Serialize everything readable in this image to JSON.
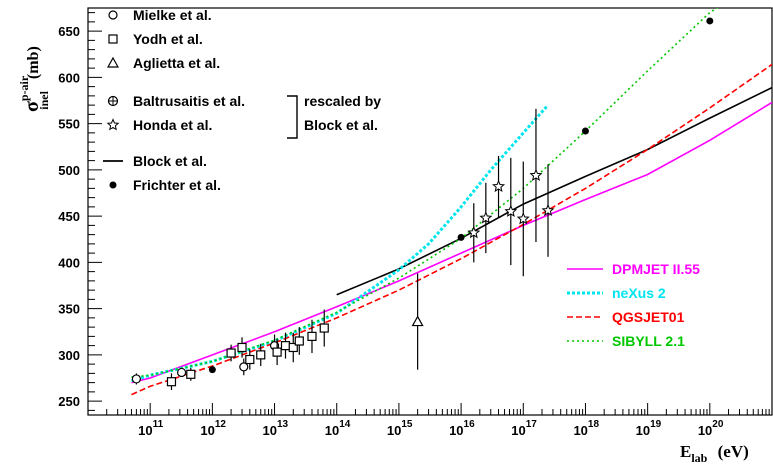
{
  "chart_data": {
    "type": "scatter",
    "xlabel": {
      "main": "E",
      "sub": "lab",
      "unit": "(eV)"
    },
    "ylabel": {
      "main": "σ",
      "sup": "p-air",
      "sub": "inel",
      "unit": "(mb)"
    },
    "xscale": "log",
    "xlim": [
      10000000000.0,
      1e+21
    ],
    "ylim": [
      235,
      675
    ],
    "x_tick_exponents": [
      "11",
      "12",
      "13",
      "14",
      "15",
      "16",
      "17",
      "18",
      "19",
      "20"
    ],
    "y_ticks": [
      250,
      300,
      350,
      400,
      450,
      500,
      550,
      600,
      650
    ],
    "legend_data": [
      {
        "name": "Mielke et al.",
        "marker": "circle"
      },
      {
        "name": "Yodh et al.",
        "marker": "square"
      },
      {
        "name": "Aglietta et al.",
        "marker": "triangle"
      },
      {
        "name": "Baltrusaitis et al.",
        "marker": "crossed-circle"
      },
      {
        "name": "Honda et al.",
        "marker": "star"
      },
      {
        "name": "Block et al.",
        "marker": "line"
      },
      {
        "name": "Frichter et al.",
        "marker": "dot"
      }
    ],
    "bracket_note": [
      "rescaled by",
      "Block et al."
    ],
    "legend_models": [
      {
        "name": "DPMJET II.55",
        "color": "#ff00ff"
      },
      {
        "name": "neXus 2",
        "color": "#00e5ee"
      },
      {
        "name": "QGSJET01",
        "color": "#ff0000"
      },
      {
        "name": "SIBYLL 2.1",
        "color": "#00c800"
      }
    ],
    "series": [
      {
        "name": "Mielke et al.",
        "marker": "circle",
        "points": [
          {
            "x": 60000000000.0,
            "y": 274,
            "err": 6
          },
          {
            "x": 320000000000.0,
            "y": 281,
            "err": 5
          },
          {
            "x": 3200000000000.0,
            "y": 287,
            "err": 9
          },
          {
            "x": 10000000000000.0,
            "y": 310,
            "err": 12
          }
        ]
      },
      {
        "name": "Yodh et al.",
        "marker": "square",
        "points": [
          {
            "x": 220000000000.0,
            "y": 271,
            "err": 9
          },
          {
            "x": 450000000000.0,
            "y": 279,
            "err": 7
          },
          {
            "x": 2000000000000.0,
            "y": 302,
            "err": 9
          },
          {
            "x": 3000000000000.0,
            "y": 308,
            "err": 11
          },
          {
            "x": 4000000000000.0,
            "y": 295,
            "err": 11
          },
          {
            "x": 6000000000000.0,
            "y": 300,
            "err": 12
          },
          {
            "x": 11000000000000.0,
            "y": 303,
            "err": 14
          },
          {
            "x": 15000000000000.0,
            "y": 310,
            "err": 14
          },
          {
            "x": 20000000000000.0,
            "y": 308,
            "err": 16
          },
          {
            "x": 25000000000000.0,
            "y": 315,
            "err": 15
          },
          {
            "x": 40000000000000.0,
            "y": 320,
            "err": 18
          },
          {
            "x": 63000000000000.0,
            "y": 329,
            "err": 20
          }
        ]
      },
      {
        "name": "Aglietta et al.",
        "marker": "triangle",
        "points": [
          {
            "x": 2000000000000000.0,
            "y": 336,
            "err": 52
          }
        ]
      },
      {
        "name": "Honda et al.",
        "marker": "star",
        "points": [
          {
            "x": 1.6e+16,
            "y": 432,
            "err": 32
          },
          {
            "x": 2.5e+16,
            "y": 448,
            "err": 38
          },
          {
            "x": 4e+16,
            "y": 482,
            "err": 33
          },
          {
            "x": 6.3e+16,
            "y": 455,
            "err": 58
          },
          {
            "x": 1e+17,
            "y": 447,
            "err": 62
          },
          {
            "x": 1.6e+17,
            "y": 494,
            "err": 72
          },
          {
            "x": 2.5e+17,
            "y": 456,
            "err": 50
          }
        ]
      },
      {
        "name": "Frichter et al.",
        "marker": "dot",
        "points": [
          {
            "x": 1000000000000.0,
            "y": 284
          },
          {
            "x": 1e+16,
            "y": 427
          },
          {
            "x": 1e+18,
            "y": 542
          },
          {
            "x": 1e+20,
            "y": 661
          }
        ]
      }
    ],
    "curves": [
      {
        "name": "Block et al.",
        "color": "#000000",
        "style": "solid",
        "x": [
          100000000000000.0,
          1000000000000000.0,
          1e+16,
          1e+17,
          1e+18,
          1e+19,
          1e+20,
          1e+21
        ],
        "y": [
          365,
          393,
          426,
          463,
          493,
          522,
          556,
          589
        ]
      },
      {
        "name": "DPMJET II.55",
        "color": "#ff00ff",
        "style": "solid",
        "x": [
          50000000000.0,
          100000000000.0,
          1000000000000.0,
          10000000000000.0,
          100000000000000.0,
          1000000000000000.0,
          1e+16,
          1e+17,
          1e+18,
          1e+19,
          1e+20,
          1e+21
        ],
        "y": [
          270,
          275,
          300,
          325,
          352,
          380,
          410,
          440,
          468,
          495,
          532,
          573
        ]
      },
      {
        "name": "neXus 2",
        "color": "#00e5ee",
        "style": "star-dotted",
        "x": [
          50000000000.0,
          100000000000.0,
          1000000000000.0,
          10000000000000.0,
          100000000000000.0,
          1000000000000000.0,
          3000000000000000.0,
          1e+16,
          3e+16,
          1e+17,
          2.5e+17
        ],
        "y": [
          272,
          278,
          293,
          315,
          345,
          392,
          420,
          460,
          500,
          540,
          570
        ]
      },
      {
        "name": "QGSJET01",
        "color": "#ff0000",
        "style": "dashed",
        "x": [
          50000000000.0,
          100000000000.0,
          1000000000000.0,
          10000000000000.0,
          100000000000000.0,
          1000000000000000.0,
          1e+16,
          1e+17,
          1e+18,
          1e+19,
          1e+20,
          1e+21
        ],
        "y": [
          257,
          266,
          288,
          313,
          340,
          370,
          404,
          441,
          480,
          522,
          567,
          614
        ]
      },
      {
        "name": "SIBYLL 2.1",
        "color": "#00c800",
        "style": "dotted",
        "x": [
          50000000000.0,
          100000000000.0,
          1000000000000.0,
          10000000000000.0,
          100000000000000.0,
          1000000000000000.0,
          1e+16,
          1e+17,
          1e+18,
          1e+19,
          1e+20,
          5e+20
        ],
        "y": [
          276,
          278,
          293,
          316,
          346,
          383,
          426,
          480,
          542,
          607,
          670,
          700
        ]
      }
    ]
  }
}
